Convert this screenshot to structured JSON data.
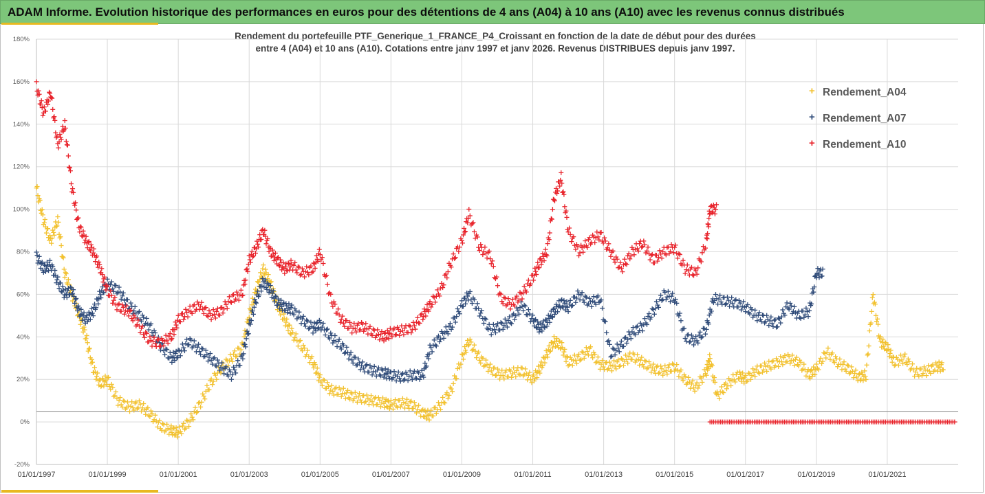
{
  "header": {
    "title": "ADAM Informe. Evolution historique des performances en euros pour des détentions de 4 ans (A04) à 10 ans (A10) avec les revenus connus distribués"
  },
  "colors": {
    "header_bg": "#7dc67a",
    "accent": "#e8b920",
    "grid": "#d9d9d9",
    "axis_text": "#595959"
  },
  "chart_data": {
    "type": "scatter",
    "title": "Rendement du portefeuille PTF_Generique_1_FRANCE_P4_Croissant  en fonction de la date de début pour des durées",
    "subtitle": "entre 4 (A04) et 10 ans (A10). Cotations entre janv 1997 et janv 2026. Revenus DISTRIBUES depuis janv 1997.",
    "xlabel": "",
    "ylabel": "",
    "xlim": [
      1997.0,
      2023.0
    ],
    "ylim": [
      -20,
      180
    ],
    "y_ticks": [
      -20,
      0,
      20,
      40,
      60,
      80,
      100,
      120,
      140,
      160,
      180
    ],
    "y_tick_labels": [
      "-20%",
      "0%",
      "20%",
      "40%",
      "60%",
      "80%",
      "100%",
      "120%",
      "140%",
      "160%",
      "180%"
    ],
    "x_ticks": [
      1997,
      1999,
      2001,
      2003,
      2005,
      2007,
      2009,
      2011,
      2013,
      2015,
      2017,
      2019,
      2021
    ],
    "x_tick_labels": [
      "01/01/1997",
      "01/01/1999",
      "01/01/2001",
      "01/01/2003",
      "01/01/2005",
      "01/01/2007",
      "01/01/2009",
      "01/01/2011",
      "01/01/2013",
      "01/01/2015",
      "01/01/2017",
      "01/01/2019",
      "01/01/2021"
    ],
    "reference_line": 5,
    "grid": true,
    "legend_position": "top-right",
    "series": [
      {
        "name": "Rendement_A04",
        "color": "#f2c12e",
        "x": [
          1997.0,
          1997.2,
          1997.4,
          1997.6,
          1997.8,
          1998.0,
          1998.2,
          1998.4,
          1998.6,
          1998.8,
          1999.0,
          1999.3,
          1999.6,
          1999.9,
          2000.2,
          2000.5,
          2000.8,
          2001.0,
          2001.3,
          2001.6,
          2001.9,
          2002.2,
          2002.5,
          2002.8,
          2003.0,
          2003.2,
          2003.4,
          2003.6,
          2003.8,
          2004.0,
          2004.2,
          2004.5,
          2004.8,
          2005.0,
          2005.3,
          2005.6,
          2005.9,
          2006.2,
          2006.5,
          2006.8,
          2007.0,
          2007.3,
          2007.6,
          2007.9,
          2008.1,
          2008.4,
          2008.7,
          2009.0,
          2009.2,
          2009.5,
          2009.8,
          2010.1,
          2010.4,
          2010.7,
          2011.0,
          2011.2,
          2011.4,
          2011.6,
          2011.8,
          2012.0,
          2012.3,
          2012.6,
          2012.9,
          2013.2,
          2013.5,
          2013.8,
          2014.1,
          2014.4,
          2014.7,
          2015.0,
          2015.3,
          2015.6,
          2015.9,
          2016.0,
          2016.2,
          2016.5,
          2016.8,
          2017.0,
          2017.3,
          2017.6,
          2017.9,
          2018.2,
          2018.5,
          2018.8,
          2019.0,
          2019.3,
          2019.6,
          2019.9,
          2020.2,
          2020.4,
          2020.6,
          2020.8,
          2021.0,
          2021.2,
          2021.5,
          2021.8,
          2022.1,
          2022.4
        ],
        "y": [
          110,
          95,
          85,
          95,
          70,
          60,
          50,
          40,
          25,
          18,
          20,
          10,
          7,
          8,
          4,
          -2,
          -4,
          -5,
          0,
          8,
          18,
          25,
          30,
          35,
          50,
          62,
          72,
          65,
          55,
          48,
          42,
          35,
          28,
          20,
          15,
          14,
          12,
          11,
          10,
          9,
          8,
          9,
          8,
          4,
          3,
          8,
          15,
          30,
          38,
          30,
          25,
          22,
          23,
          24,
          20,
          25,
          32,
          38,
          36,
          28,
          30,
          34,
          27,
          26,
          28,
          31,
          28,
          25,
          24,
          26,
          20,
          16,
          24,
          30,
          12,
          18,
          22,
          20,
          24,
          26,
          28,
          30,
          28,
          22,
          25,
          33,
          28,
          25,
          21,
          22,
          60,
          38,
          35,
          28,
          30,
          23,
          24,
          26
        ]
      },
      {
        "name": "Rendement_A07",
        "color": "#2e4a78",
        "x": [
          1997.0,
          1997.2,
          1997.4,
          1997.6,
          1997.8,
          1998.0,
          1998.2,
          1998.4,
          1998.6,
          1998.8,
          1999.0,
          1999.3,
          1999.6,
          1999.9,
          2000.2,
          2000.5,
          2000.8,
          2001.0,
          2001.3,
          2001.6,
          2001.9,
          2002.2,
          2002.5,
          2002.8,
          2003.0,
          2003.2,
          2003.4,
          2003.6,
          2003.8,
          2004.0,
          2004.2,
          2004.5,
          2004.8,
          2005.0,
          2005.3,
          2005.6,
          2005.9,
          2006.2,
          2006.5,
          2006.8,
          2007.0,
          2007.3,
          2007.6,
          2007.9,
          2008.1,
          2008.4,
          2008.7,
          2009.0,
          2009.2,
          2009.5,
          2009.8,
          2010.1,
          2010.4,
          2010.7,
          2011.0,
          2011.2,
          2011.4,
          2011.6,
          2011.8,
          2012.0,
          2012.3,
          2012.6,
          2012.9,
          2013.2,
          2013.5,
          2013.8,
          2014.1,
          2014.4,
          2014.7,
          2015.0,
          2015.3,
          2015.6,
          2015.9,
          2016.1,
          2016.4,
          2016.7,
          2017.0,
          2017.3,
          2017.6,
          2017.9,
          2018.2,
          2018.5,
          2018.8,
          2019.0
        ],
        "y": [
          78,
          72,
          74,
          66,
          60,
          62,
          52,
          48,
          52,
          60,
          65,
          62,
          55,
          50,
          45,
          36,
          30,
          32,
          38,
          34,
          30,
          26,
          22,
          30,
          45,
          58,
          66,
          62,
          56,
          54,
          53,
          48,
          44,
          46,
          40,
          36,
          30,
          26,
          24,
          23,
          22,
          21,
          22,
          22,
          34,
          40,
          45,
          55,
          60,
          52,
          43,
          45,
          48,
          55,
          48,
          44,
          47,
          52,
          56,
          54,
          60,
          56,
          58,
          32,
          36,
          42,
          45,
          52,
          60,
          58,
          40,
          38,
          44,
          58,
          57,
          56,
          54,
          50,
          48,
          46,
          55,
          50,
          52,
          70
        ]
      },
      {
        "name": "Rendement_A10",
        "color": "#e8222a",
        "x": [
          1997.0,
          1997.2,
          1997.4,
          1997.6,
          1997.8,
          1998.0,
          1998.2,
          1998.4,
          1998.6,
          1998.8,
          1999.0,
          1999.3,
          1999.6,
          1999.9,
          2000.2,
          2000.5,
          2000.8,
          2001.0,
          2001.3,
          2001.6,
          2001.9,
          2002.2,
          2002.5,
          2002.8,
          2003.0,
          2003.2,
          2003.4,
          2003.6,
          2003.8,
          2004.0,
          2004.2,
          2004.5,
          2004.8,
          2005.0,
          2005.3,
          2005.6,
          2005.9,
          2006.2,
          2006.5,
          2006.8,
          2007.0,
          2007.3,
          2007.6,
          2007.9,
          2008.1,
          2008.4,
          2008.7,
          2009.0,
          2009.2,
          2009.5,
          2009.8,
          2010.1,
          2010.4,
          2010.7,
          2011.0,
          2011.2,
          2011.4,
          2011.6,
          2011.8,
          2012.0,
          2012.3,
          2012.6,
          2012.9,
          2013.2,
          2013.5,
          2013.8,
          2014.1,
          2014.4,
          2014.7,
          2015.0,
          2015.3,
          2015.6,
          2015.9,
          2016.0
        ],
        "y": [
          158,
          145,
          155,
          130,
          140,
          110,
          92,
          85,
          80,
          72,
          62,
          54,
          52,
          45,
          38,
          37,
          40,
          48,
          52,
          55,
          50,
          52,
          58,
          60,
          76,
          82,
          90,
          80,
          76,
          72,
          74,
          70,
          72,
          80,
          58,
          48,
          44,
          45,
          42,
          40,
          42,
          43,
          44,
          50,
          55,
          62,
          75,
          85,
          98,
          82,
          78,
          58,
          55,
          60,
          68,
          75,
          80,
          105,
          115,
          90,
          80,
          85,
          88,
          80,
          72,
          80,
          84,
          76,
          80,
          82,
          72,
          70,
          85,
          100
        ]
      }
    ]
  }
}
